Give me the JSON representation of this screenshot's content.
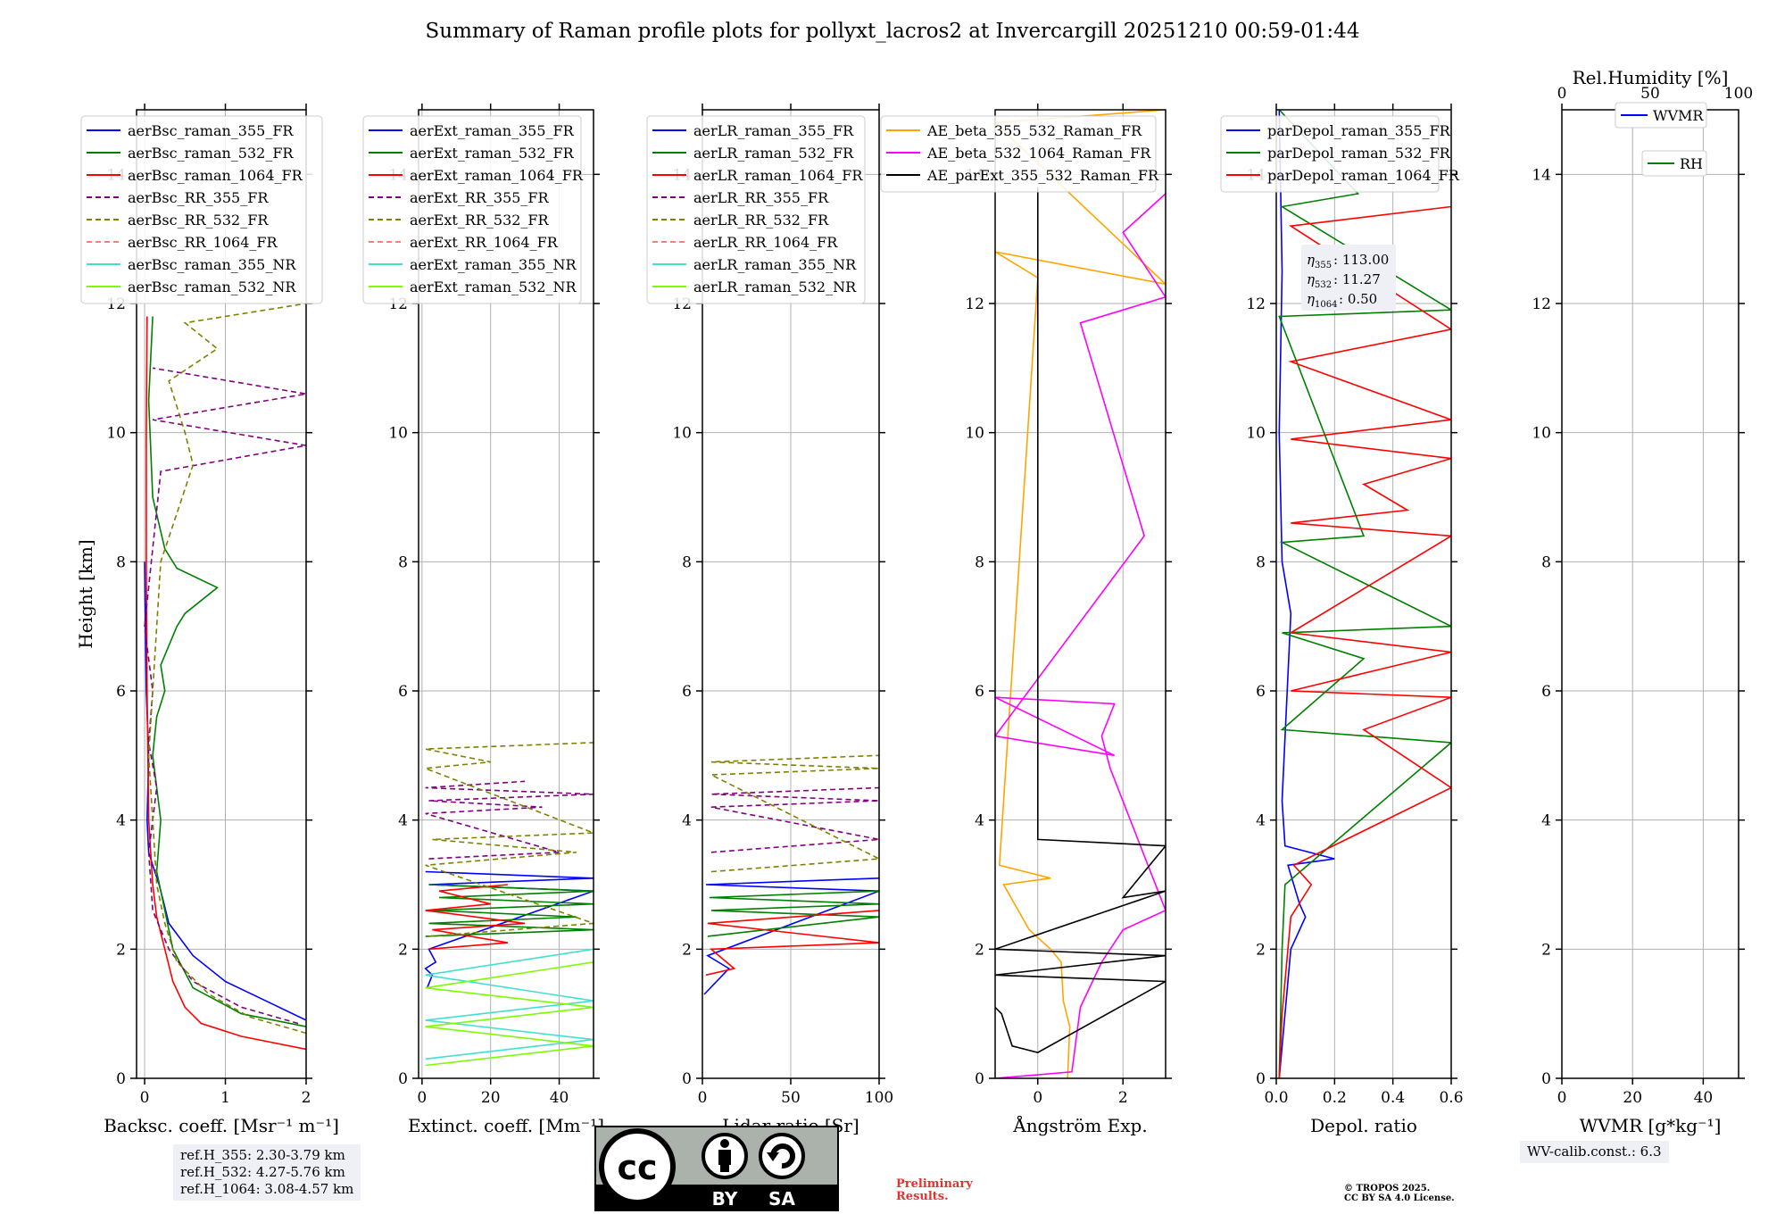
{
  "title": "Summary of Raman profile plots for pollyxt_lacros2 at Invercargill 20251210 00:59-01:44",
  "chart_data": [
    {
      "type": "line",
      "ylabel": "Height [km]",
      "xlabel": "Backsc. coeff. [Msr⁻¹ m⁻¹]",
      "xlim": [
        -0.1,
        2.0
      ],
      "ylim": [
        0,
        15
      ],
      "xticks": [
        0,
        1,
        2
      ],
      "xtick_labels": [
        "0",
        "1",
        "2"
      ],
      "yticks": [
        0,
        2,
        4,
        6,
        8,
        10,
        12,
        14
      ],
      "ytick_labels": [
        "0",
        "2",
        "4",
        "6",
        "8",
        "10",
        "12",
        "14"
      ],
      "legend": "top-left",
      "series": [
        {
          "name": "aerBsc_raman_355_FR",
          "color": "#0000ff",
          "dash": false,
          "x": [
            2.0,
            1.5,
            1.0,
            0.6,
            0.3,
            0.22,
            0.18,
            0.1,
            0.05,
            0.03,
            0.05,
            0.02,
            0.0
          ],
          "y": [
            0.9,
            1.2,
            1.5,
            1.9,
            2.4,
            2.8,
            3.0,
            3.3,
            3.5,
            4.0,
            5.0,
            6.0,
            8.0
          ]
        },
        {
          "name": "aerBsc_raman_532_FR",
          "color": "#008000",
          "dash": false,
          "x": [
            2.0,
            1.2,
            0.6,
            0.35,
            0.25,
            0.15,
            0.2,
            0.1,
            0.15,
            0.25,
            0.2,
            0.4,
            0.5,
            0.9,
            0.4,
            0.25,
            0.1,
            0.05,
            0.1
          ],
          "y": [
            0.8,
            1.0,
            1.4,
            2.0,
            2.6,
            3.2,
            4.0,
            5.0,
            5.6,
            6.0,
            6.4,
            7.0,
            7.2,
            7.6,
            7.9,
            8.2,
            9.0,
            10.5,
            11.8
          ]
        },
        {
          "name": "aerBsc_raman_1064_FR",
          "color": "#ff0000",
          "dash": false,
          "x": [
            2.0,
            1.2,
            0.7,
            0.5,
            0.35,
            0.25,
            0.15,
            0.1,
            0.05,
            0.03,
            0.02,
            0.02,
            0.03
          ],
          "y": [
            0.45,
            0.65,
            0.85,
            1.1,
            1.5,
            2.0,
            2.5,
            3.0,
            4.0,
            6.0,
            8.0,
            10.0,
            11.8
          ]
        },
        {
          "name": "aerBsc_RR_355_FR",
          "color": "#800080",
          "dash": true,
          "x": [
            1.9,
            1.2,
            0.6,
            0.3,
            0.1,
            0.05,
            0.15,
            0.05,
            0.1,
            0.0,
            0.2,
            2.0,
            0.1,
            2.0,
            0.1
          ],
          "y": [
            0.85,
            1.1,
            1.5,
            2.0,
            2.6,
            3.5,
            4.5,
            5.2,
            6.0,
            7.0,
            9.4,
            9.8,
            10.2,
            10.6,
            11.0
          ]
        },
        {
          "name": "aerBsc_RR_532_FR",
          "color": "#808000",
          "dash": true,
          "x": [
            2.0,
            1.3,
            0.8,
            0.4,
            0.25,
            0.15,
            0.1,
            0.05,
            0.1,
            0.2,
            0.6,
            0.5,
            0.3,
            0.9,
            0.5,
            2.0
          ],
          "y": [
            0.7,
            0.95,
            1.3,
            1.8,
            2.4,
            3.0,
            4.0,
            5.0,
            6.0,
            8.0,
            9.5,
            10.0,
            10.8,
            11.3,
            11.7,
            12.0
          ]
        },
        {
          "name": "aerBsc_RR_1064_FR",
          "color": "#fa8072",
          "dash": true,
          "x": [],
          "y": []
        },
        {
          "name": "aerBsc_raman_355_NR",
          "color": "#40e0d0",
          "dash": false,
          "x": [],
          "y": []
        },
        {
          "name": "aerBsc_raman_532_NR",
          "color": "#7cfc00",
          "dash": false,
          "x": [],
          "y": []
        }
      ]
    },
    {
      "type": "line",
      "ylabel": "",
      "xlabel": "Extinct. coeff. [Mm⁻¹]",
      "xlim": [
        -1,
        50
      ],
      "ylim": [
        0,
        15
      ],
      "xticks": [
        0,
        20,
        40
      ],
      "xtick_labels": [
        "0",
        "20",
        "40"
      ],
      "yticks": [
        0,
        2,
        4,
        6,
        8,
        10,
        12,
        14
      ],
      "ytick_labels": [
        "0",
        "2",
        "4",
        "6",
        "8",
        "10",
        "12",
        "14"
      ],
      "legend": "top-left",
      "series": [
        {
          "name": "aerExt_raman_355_FR",
          "color": "#0000ff",
          "dash": false,
          "x": [
            1.5,
            3.0,
            1.0,
            4.0,
            2.0,
            50,
            2.0,
            50,
            1.0
          ],
          "y": [
            1.4,
            1.6,
            1.7,
            1.8,
            2.0,
            2.9,
            3.0,
            3.1,
            3.2
          ]
        },
        {
          "name": "aerExt_raman_532_FR",
          "color": "#008000",
          "dash": false,
          "x": [
            1.0,
            50,
            2.0,
            45,
            3.0,
            50,
            5.0,
            50,
            2.0
          ],
          "y": [
            2.2,
            2.3,
            2.4,
            2.5,
            2.6,
            2.7,
            2.8,
            2.9,
            3.0
          ]
        },
        {
          "name": "aerExt_raman_1064_FR",
          "color": "#ff0000",
          "dash": false,
          "x": [
            2.0,
            25,
            3.0,
            30,
            1.0,
            20,
            5.0,
            25
          ],
          "y": [
            2.0,
            2.1,
            2.3,
            2.4,
            2.6,
            2.7,
            2.9,
            3.0
          ]
        },
        {
          "name": "aerExt_RR_355_FR",
          "color": "#800080",
          "dash": true,
          "x": [
            2.0,
            40,
            1.0,
            35,
            2.0,
            50,
            1.0,
            30
          ],
          "y": [
            3.4,
            3.5,
            4.1,
            4.2,
            4.3,
            4.4,
            4.5,
            4.6
          ]
        },
        {
          "name": "aerExt_RR_532_FR",
          "color": "#808000",
          "dash": true,
          "x": [
            2.0,
            50,
            1.0,
            45,
            3.0,
            50,
            1.0,
            20,
            1.0,
            50
          ],
          "y": [
            2.2,
            2.4,
            3.3,
            3.5,
            3.7,
            3.8,
            4.8,
            4.9,
            5.1,
            5.2
          ]
        },
        {
          "name": "aerExt_RR_1064_FR",
          "color": "#fa8072",
          "dash": true,
          "x": [],
          "y": []
        },
        {
          "name": "aerExt_raman_355_NR",
          "color": "#40e0d0",
          "dash": false,
          "x": [
            1.0,
            50,
            1.0,
            50,
            1.0,
            50
          ],
          "y": [
            0.3,
            0.6,
            0.9,
            1.2,
            1.6,
            2.0
          ]
        },
        {
          "name": "aerExt_raman_532_NR",
          "color": "#7cfc00",
          "dash": false,
          "x": [
            1.0,
            50,
            1.0,
            50,
            1.0,
            50
          ],
          "y": [
            0.2,
            0.5,
            0.8,
            1.1,
            1.4,
            1.8
          ]
        }
      ]
    },
    {
      "type": "line",
      "ylabel": "",
      "xlabel": "Lidar ratio [Sr]",
      "xlim": [
        0,
        100
      ],
      "ylim": [
        0,
        15
      ],
      "xticks": [
        0,
        50,
        100
      ],
      "xtick_labels": [
        "0",
        "50",
        "100"
      ],
      "yticks": [
        0,
        2,
        4,
        6,
        8,
        10,
        12,
        14
      ],
      "ytick_labels": [
        "0",
        "2",
        "4",
        "6",
        "8",
        "10",
        "12",
        "14"
      ],
      "legend": "top-left",
      "series": [
        {
          "name": "aerLR_raman_355_FR",
          "color": "#0000ff",
          "dash": false,
          "x": [
            1,
            15,
            3,
            100,
            2,
            100
          ],
          "y": [
            1.3,
            1.7,
            1.9,
            2.9,
            3.0,
            3.1
          ]
        },
        {
          "name": "aerLR_raman_532_FR",
          "color": "#008000",
          "dash": false,
          "x": [
            3,
            100,
            5,
            100,
            4,
            100
          ],
          "y": [
            2.2,
            2.5,
            2.6,
            2.7,
            2.8,
            2.9
          ]
        },
        {
          "name": "aerLR_raman_1064_FR",
          "color": "#ff0000",
          "dash": false,
          "x": [
            2,
            18,
            5,
            100,
            3,
            100
          ],
          "y": [
            1.6,
            1.7,
            2.0,
            2.1,
            2.4,
            2.6
          ]
        },
        {
          "name": "aerLR_RR_355_FR",
          "color": "#800080",
          "dash": true,
          "x": [
            5,
            100,
            5,
            100,
            5,
            100
          ],
          "y": [
            3.5,
            3.7,
            4.2,
            4.3,
            4.4,
            4.5
          ]
        },
        {
          "name": "aerLR_RR_532_FR",
          "color": "#808000",
          "dash": true,
          "x": [
            5,
            100,
            5,
            100,
            5,
            100
          ],
          "y": [
            3.2,
            3.4,
            4.7,
            4.8,
            4.9,
            5.0
          ]
        },
        {
          "name": "aerLR_RR_1064_FR",
          "color": "#fa8072",
          "dash": true,
          "x": [],
          "y": []
        },
        {
          "name": "aerLR_raman_355_NR",
          "color": "#40e0d0",
          "dash": false,
          "x": [],
          "y": []
        },
        {
          "name": "aerLR_raman_532_NR",
          "color": "#7cfc00",
          "dash": false,
          "x": [],
          "y": []
        }
      ]
    },
    {
      "type": "line",
      "ylabel": "",
      "xlabel": "Ångström Exp.",
      "xlim": [
        -1,
        3
      ],
      "ylim": [
        0,
        15
      ],
      "xticks": [
        0,
        2
      ],
      "xtick_labels": [
        "0",
        "2"
      ],
      "yticks": [
        0,
        2,
        4,
        6,
        8,
        10,
        12,
        14
      ],
      "ytick_labels": [
        "0",
        "2",
        "4",
        "6",
        "8",
        "10",
        "12",
        "14"
      ],
      "legend": "top-right",
      "series": [
        {
          "name": "AE_beta_355_532_Raman_FR",
          "color": "#ffa500",
          "dash": false,
          "x": [
            0.7,
            0.75,
            0.6,
            0.55,
            0.3,
            -0.2,
            -0.8,
            0.3,
            -0.9,
            0.0,
            -1.0,
            3.0,
            -1.0,
            3.0
          ],
          "y": [
            0.0,
            0.8,
            1.2,
            1.8,
            2.0,
            2.3,
            3.0,
            3.1,
            3.3,
            12.4,
            12.8,
            12.3,
            14.8,
            15.0
          ]
        },
        {
          "name": "AE_beta_532_1064_Raman_FR",
          "color": "#ff00ff",
          "dash": false,
          "x": [
            -1.0,
            0.8,
            0.9,
            1.0,
            1.5,
            2.0,
            3.0,
            1.7,
            1.5,
            1.8,
            -1.0,
            1.8,
            -1.0,
            2.5,
            1.0,
            3.0,
            2.0,
            3.0
          ],
          "y": [
            0.0,
            0.1,
            0.6,
            1.1,
            1.8,
            2.3,
            2.6,
            4.8,
            5.3,
            5.8,
            5.9,
            5.0,
            5.3,
            8.4,
            11.7,
            12.1,
            13.1,
            13.7
          ]
        },
        {
          "name": "AE_parExt_355_532_Raman_FR",
          "color": "#000000",
          "dash": false,
          "x": [
            -1.0,
            -0.85,
            -0.6,
            0.0,
            3.0,
            -1.0,
            3.0,
            -1.0,
            3.0,
            2.0,
            3.0,
            0.0,
            0.0
          ],
          "y": [
            1.1,
            1.0,
            0.5,
            0.4,
            1.5,
            1.6,
            1.9,
            2.0,
            2.9,
            2.8,
            3.6,
            3.7,
            13.8
          ]
        }
      ]
    },
    {
      "type": "line",
      "ylabel": "",
      "xlabel": "Depol. ratio",
      "xlim": [
        0,
        0.6
      ],
      "ylim": [
        0,
        15
      ],
      "xticks": [
        0.0,
        0.2,
        0.4,
        0.6
      ],
      "xtick_labels": [
        "0.0",
        "0.2",
        "0.4",
        "0.6"
      ],
      "yticks": [
        0,
        2,
        4,
        6,
        8,
        10,
        12,
        14
      ],
      "ytick_labels": [
        "0",
        "2",
        "4",
        "6",
        "8",
        "10",
        "12",
        "14"
      ],
      "legend": "top-left",
      "series": [
        {
          "name": "parDepol_raman_355_FR",
          "color": "#0000ff",
          "dash": false,
          "x": [
            0.01,
            0.05,
            0.1,
            0.08,
            0.04,
            0.2,
            0.03,
            0.02,
            0.05,
            0.02,
            0.01,
            0.02,
            0.01
          ],
          "y": [
            0.0,
            2.0,
            2.5,
            2.7,
            3.3,
            3.4,
            3.6,
            4.3,
            7.2,
            8.0,
            10.0,
            12.5,
            15.0
          ]
        },
        {
          "name": "parDepol_raman_532_FR",
          "color": "#008000",
          "dash": false,
          "x": [
            0.01,
            0.02,
            0.03,
            0.6,
            0.02,
            0.3,
            0.02,
            0.6,
            0.02,
            0.3,
            0.01,
            0.6,
            0.02,
            0.28,
            0.01
          ],
          "y": [
            0.0,
            2.0,
            3.0,
            5.2,
            5.4,
            6.5,
            6.9,
            7.0,
            8.3,
            8.4,
            11.8,
            11.9,
            13.5,
            13.7,
            15.0
          ]
        },
        {
          "name": "parDepol_raman_1064_FR",
          "color": "#ff0000",
          "dash": false,
          "x": [
            0.01,
            0.02,
            0.05,
            0.12,
            0.06,
            0.6,
            0.3,
            0.6,
            0.05,
            0.6,
            0.05,
            0.6,
            0.05,
            0.45,
            0.3,
            0.6,
            0.05,
            0.6,
            0.05,
            0.6,
            0.05,
            0.6
          ],
          "y": [
            0.0,
            1.0,
            2.5,
            3.0,
            3.3,
            4.5,
            5.4,
            5.9,
            6.0,
            6.6,
            6.9,
            8.4,
            8.6,
            8.8,
            9.2,
            9.6,
            9.9,
            10.2,
            11.1,
            11.6,
            13.2,
            13.5
          ]
        }
      ]
    },
    {
      "type": "line",
      "ylabel": "",
      "xlabel": "WVMR [g*kg⁻¹]",
      "x2label": "Rel.Humidity [%]",
      "xlim": [
        0,
        50
      ],
      "x2lim": [
        0,
        100
      ],
      "ylim": [
        0,
        15
      ],
      "xticks": [
        0,
        20,
        40
      ],
      "xtick_labels": [
        "0",
        "20",
        "40"
      ],
      "x2ticks": [
        0,
        50,
        100
      ],
      "x2tick_labels": [
        "0",
        "50",
        "100"
      ],
      "yticks": [
        0,
        2,
        4,
        6,
        8,
        10,
        12,
        14
      ],
      "ytick_labels": [
        "0",
        "2",
        "4",
        "6",
        "8",
        "10",
        "12",
        "14"
      ],
      "legend": "top-right",
      "series": [
        {
          "name": "WVMR",
          "color": "#0000ff",
          "dash": false,
          "x": [],
          "y": []
        },
        {
          "name": "RH",
          "color": "#008000",
          "dash": false,
          "x": [],
          "y": []
        }
      ]
    }
  ],
  "eta_box": {
    "line1": "113.00",
    "line2": "11.27",
    "line3": "0.50"
  },
  "refh_box": {
    "line1": "ref.H_355: 2.30-3.79 km",
    "line2": "ref.H_532: 4.27-5.76 km",
    "line3": "ref.H_1064: 3.08-4.57 km"
  },
  "wv_box": {
    "text": "WV-calib.const.: 6.3"
  },
  "preliminary": {
    "line1": "Preliminary",
    "line2": "Results."
  },
  "copyright": {
    "line1": "© TROPOS 2025.",
    "line2": "CC BY SA 4.0 License."
  },
  "cc_badge": {
    "by": "BY",
    "sa": "SA"
  },
  "colors": {
    "prelim": "#e83030",
    "boxbg": "#eef0f5"
  }
}
